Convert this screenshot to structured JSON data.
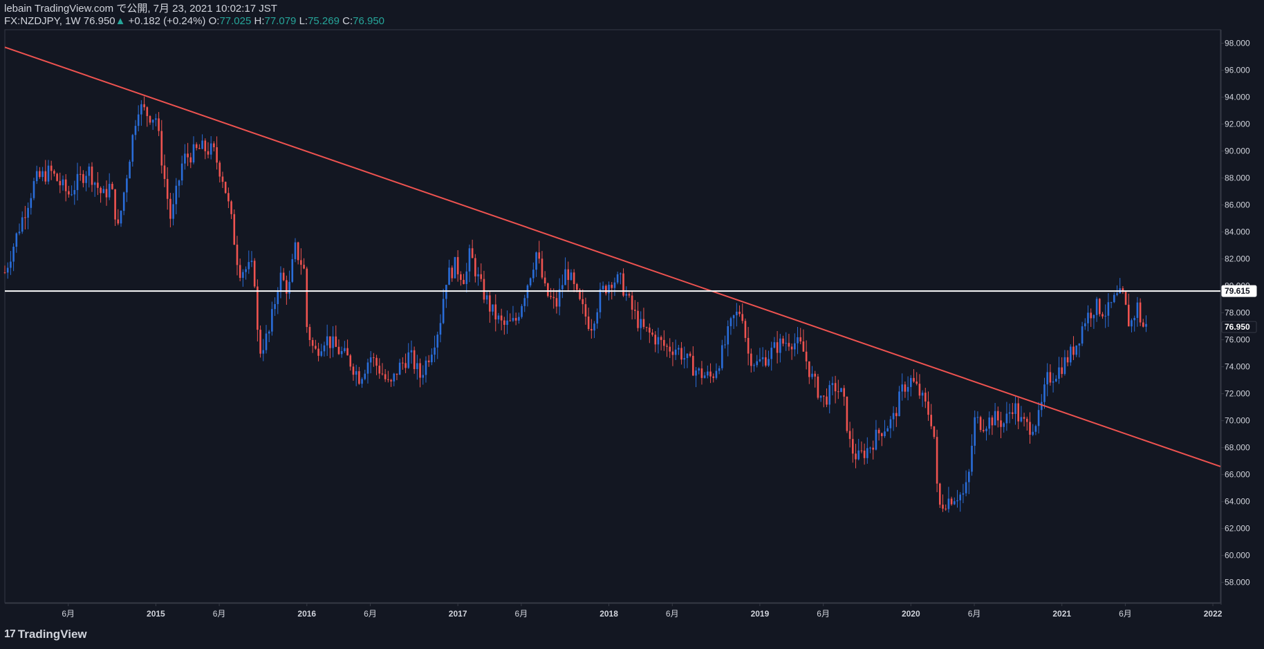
{
  "header": {
    "publish_line": "lebain TradingView.com で公開, 7月 23, 2021 10:02:17 JST",
    "symbol": "FX:NZDJPY, 1W",
    "last": "76.950",
    "change": "+0.182 (+0.24%)",
    "o_label": "O:",
    "o_value": "77.025",
    "h_label": "H:",
    "h_value": "77.079",
    "l_label": "L:",
    "l_value": "75.269",
    "c_label": "C:",
    "c_value": "76.950"
  },
  "footer": {
    "brand": "TradingView",
    "logo_text": "17"
  },
  "colors": {
    "background": "#131722",
    "up": "#2a6dd9",
    "down": "#ef5350",
    "trendline": "#ef5350",
    "hline": "#ffffff",
    "axis": "#d1d4dc",
    "grid": "#363a45"
  },
  "chart_data": {
    "type": "candlestick",
    "timeframe": "1W",
    "y_axis": {
      "ticks": [
        "98.000",
        "96.000",
        "94.000",
        "92.000",
        "90.000",
        "88.000",
        "86.000",
        "84.000",
        "82.000",
        "80.000",
        "78.000",
        "76.000",
        "74.000",
        "72.000",
        "70.000",
        "68.000",
        "66.000",
        "64.000",
        "62.000",
        "60.000",
        "58.000"
      ],
      "range": [
        56.5,
        99
      ]
    },
    "x_axis": {
      "ticks": [
        {
          "label": "6月",
          "t": 2014.42
        },
        {
          "label": "2015",
          "t": 2015.0
        },
        {
          "label": "6月",
          "t": 2015.42
        },
        {
          "label": "2016",
          "t": 2016.0
        },
        {
          "label": "6月",
          "t": 2016.42
        },
        {
          "label": "2017",
          "t": 2017.0
        },
        {
          "label": "6月",
          "t": 2017.42
        },
        {
          "label": "2018",
          "t": 2018.0
        },
        {
          "label": "6月",
          "t": 2018.42
        },
        {
          "label": "2019",
          "t": 2019.0
        },
        {
          "label": "6月",
          "t": 2019.42
        },
        {
          "label": "2020",
          "t": 2020.0
        },
        {
          "label": "6月",
          "t": 2020.42
        },
        {
          "label": "2021",
          "t": 2021.0
        },
        {
          "label": "6月",
          "t": 2021.42
        },
        {
          "label": "2022",
          "t": 2022.0
        }
      ],
      "range": [
        2014.0,
        2022.05
      ]
    },
    "price_labels": [
      {
        "text": "79.615",
        "value": 79.615,
        "style": "white"
      },
      {
        "text": "76.950",
        "value": 76.95,
        "style": "dark"
      }
    ],
    "horizontal_line": {
      "value": 79.615
    },
    "trendline": {
      "t1": 2014.0,
      "v1": 97.7,
      "t2": 2022.05,
      "v2": 66.6
    },
    "path": [
      [
        2014.0,
        81.0
      ],
      [
        2014.1,
        84.5
      ],
      [
        2014.2,
        87.8
      ],
      [
        2014.3,
        88.5
      ],
      [
        2014.42,
        86.8
      ],
      [
        2014.55,
        88.7
      ],
      [
        2014.65,
        86.6
      ],
      [
        2014.7,
        87.5
      ],
      [
        2014.75,
        84.2
      ],
      [
        2014.82,
        89.2
      ],
      [
        2014.88,
        93.4
      ],
      [
        2014.95,
        92.7
      ],
      [
        2015.0,
        92.5
      ],
      [
        2015.05,
        88.5
      ],
      [
        2015.1,
        84.8
      ],
      [
        2015.18,
        89.4
      ],
      [
        2015.3,
        90.2
      ],
      [
        2015.38,
        90.0
      ],
      [
        2015.45,
        87.8
      ],
      [
        2015.5,
        84.8
      ],
      [
        2015.55,
        81.2
      ],
      [
        2015.65,
        81.3
      ],
      [
        2015.68,
        75.0
      ],
      [
        2015.75,
        76.5
      ],
      [
        2015.82,
        80.8
      ],
      [
        2015.88,
        79.6
      ],
      [
        2015.92,
        82.8
      ],
      [
        2015.98,
        81.3
      ],
      [
        2016.0,
        77.0
      ],
      [
        2016.05,
        75.0
      ],
      [
        2016.12,
        76.2
      ],
      [
        2016.2,
        75.3
      ],
      [
        2016.28,
        74.5
      ],
      [
        2016.35,
        73.2
      ],
      [
        2016.42,
        74.8
      ],
      [
        2016.5,
        73.5
      ],
      [
        2016.55,
        72.4
      ],
      [
        2016.6,
        73.8
      ],
      [
        2016.68,
        74.9
      ],
      [
        2016.75,
        73.3
      ],
      [
        2016.82,
        75.2
      ],
      [
        2016.88,
        77.2
      ],
      [
        2016.92,
        80.5
      ],
      [
        2016.98,
        81.5
      ],
      [
        2017.05,
        80.5
      ],
      [
        2017.08,
        82.4
      ],
      [
        2017.15,
        80.0
      ],
      [
        2017.22,
        78.2
      ],
      [
        2017.3,
        77.0
      ],
      [
        2017.38,
        77.3
      ],
      [
        2017.45,
        79.8
      ],
      [
        2017.52,
        82.5
      ],
      [
        2017.58,
        79.5
      ],
      [
        2017.65,
        78.5
      ],
      [
        2017.72,
        81.3
      ],
      [
        2017.8,
        78.8
      ],
      [
        2017.88,
        77.0
      ],
      [
        2017.95,
        79.5
      ],
      [
        2018.02,
        80.5
      ],
      [
        2018.08,
        80.3
      ],
      [
        2018.15,
        78.3
      ],
      [
        2018.22,
        76.8
      ],
      [
        2018.3,
        76.2
      ],
      [
        2018.38,
        75.4
      ],
      [
        2018.45,
        75.4
      ],
      [
        2018.52,
        74.4
      ],
      [
        2018.6,
        73.5
      ],
      [
        2018.68,
        73.2
      ],
      [
        2018.75,
        75.0
      ],
      [
        2018.82,
        77.5
      ],
      [
        2018.88,
        78.3
      ],
      [
        2018.92,
        75.0
      ],
      [
        2018.98,
        74.2
      ],
      [
        2019.05,
        74.8
      ],
      [
        2019.12,
        75.6
      ],
      [
        2019.2,
        76.0
      ],
      [
        2019.28,
        75.4
      ],
      [
        2019.35,
        73.0
      ],
      [
        2019.42,
        71.5
      ],
      [
        2019.5,
        72.5
      ],
      [
        2019.55,
        71.8
      ],
      [
        2019.6,
        68.0
      ],
      [
        2019.65,
        67.2
      ],
      [
        2019.72,
        68.0
      ],
      [
        2019.8,
        69.3
      ],
      [
        2019.88,
        70.0
      ],
      [
        2019.95,
        72.5
      ],
      [
        2020.0,
        73.0
      ],
      [
        2020.05,
        72.2
      ],
      [
        2020.12,
        70.5
      ],
      [
        2020.15,
        69.6
      ],
      [
        2020.18,
        63.5
      ],
      [
        2020.22,
        64.0
      ],
      [
        2020.3,
        64.5
      ],
      [
        2020.35,
        64.5
      ],
      [
        2020.38,
        65.5
      ],
      [
        2020.42,
        70.0
      ],
      [
        2020.48,
        69.8
      ],
      [
        2020.55,
        70.2
      ],
      [
        2020.62,
        69.8
      ],
      [
        2020.68,
        71.3
      ],
      [
        2020.72,
        70.0
      ],
      [
        2020.78,
        69.5
      ],
      [
        2020.85,
        70.2
      ],
      [
        2020.9,
        73.0
      ],
      [
        2020.98,
        73.8
      ],
      [
        2021.05,
        74.8
      ],
      [
        2021.1,
        75.8
      ],
      [
        2021.15,
        77.5
      ],
      [
        2021.22,
        78.5
      ],
      [
        2021.3,
        78.0
      ],
      [
        2021.35,
        79.0
      ],
      [
        2021.4,
        79.3
      ],
      [
        2021.45,
        77.0
      ],
      [
        2021.5,
        78.5
      ],
      [
        2021.53,
        77.0
      ],
      [
        2021.56,
        76.95
      ]
    ]
  }
}
